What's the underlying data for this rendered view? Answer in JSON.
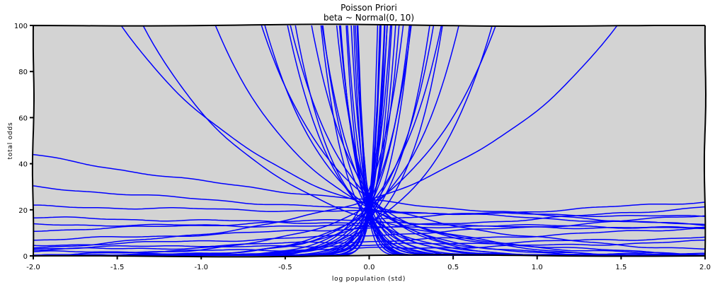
{
  "chart_data": {
    "type": "line",
    "title": "Poisson Priori",
    "subtitle": "beta ~ Normal(0, 10)",
    "xlabel": "log population (std)",
    "ylabel": "total odds",
    "xlim": [
      -2.0,
      2.0
    ],
    "ylim": [
      0,
      100
    ],
    "x_ticks": [
      "-2.0",
      "-1.5",
      "-1.0",
      "-0.5",
      "0.0",
      "0.5",
      "1.0",
      "1.5",
      "2.0"
    ],
    "y_ticks": [
      "0",
      "20",
      "40",
      "60",
      "80",
      "100"
    ],
    "grid": false,
    "series_color": "#0000ff",
    "background_color": "#d3d3d3",
    "series": [
      {
        "a": 3.05,
        "b": -1.7
      },
      {
        "a": 2.8,
        "b": -1.34
      },
      {
        "a": 3.1,
        "b": -1.02
      },
      {
        "a": 3.18,
        "b": -0.3
      },
      {
        "a": 3.0,
        "b": -0.2
      },
      {
        "a": 2.78,
        "b": 0.19
      },
      {
        "a": 2.5,
        "b": 0.28
      },
      {
        "a": 2.65,
        "b": -0.08
      },
      {
        "a": 2.95,
        "b": -0.06
      },
      {
        "a": 2.2,
        "b": 0.34
      },
      {
        "a": 1.85,
        "b": 0.33
      },
      {
        "a": 1.55,
        "b": 0.27
      },
      {
        "a": 1.15,
        "b": 0.35
      },
      {
        "a": 2.55,
        "b": -0.03
      },
      {
        "a": 3.2,
        "b": 0.95
      },
      {
        "a": 3.1,
        "b": 2.0
      },
      {
        "a": 3.05,
        "b": -2.5
      },
      {
        "a": 3.2,
        "b": -3.0
      },
      {
        "a": 3.0,
        "b": 3.0
      },
      {
        "a": 2.9,
        "b": -3.5
      },
      {
        "a": 3.1,
        "b": 3.5
      },
      {
        "a": 2.85,
        "b": -4.0
      },
      {
        "a": 3.0,
        "b": 4.2
      },
      {
        "a": 3.2,
        "b": -5.0
      },
      {
        "a": 2.8,
        "b": 5.0
      },
      {
        "a": 3.15,
        "b": 5.8
      },
      {
        "a": 2.95,
        "b": -6.0
      },
      {
        "a": 3.05,
        "b": 6.5
      },
      {
        "a": 3.25,
        "b": -7.0
      },
      {
        "a": 2.75,
        "b": 7.5
      },
      {
        "a": 3.1,
        "b": -8.5
      },
      {
        "a": 3.0,
        "b": 9.0
      },
      {
        "a": 2.9,
        "b": -10.0
      },
      {
        "a": 3.2,
        "b": 11.0
      },
      {
        "a": 3.05,
        "b": -12.0
      },
      {
        "a": 2.85,
        "b": 13.0
      },
      {
        "a": 3.1,
        "b": -14.0
      },
      {
        "a": 3.0,
        "b": 15.0
      },
      {
        "a": 3.2,
        "b": -17.0
      },
      {
        "a": 2.9,
        "b": 18.0
      },
      {
        "a": 3.15,
        "b": -20.0
      },
      {
        "a": 3.05,
        "b": 22.0
      },
      {
        "a": 3.0,
        "b": 25.0
      },
      {
        "a": 2.8,
        "b": -26.0
      },
      {
        "a": 3.1,
        "b": 30.0
      },
      {
        "a": 3.2,
        "b": -2.2
      },
      {
        "a": 2.7,
        "b": 2.6
      },
      {
        "a": 3.3,
        "b": -3.8
      },
      {
        "a": 2.6,
        "b": 4.6
      },
      {
        "a": 3.35,
        "b": 6.2
      },
      {
        "a": 2.65,
        "b": -6.8
      },
      {
        "a": 3.0,
        "b": -9.3
      },
      {
        "a": 2.95,
        "b": 10.5
      },
      {
        "a": 3.25,
        "b": 12.5
      },
      {
        "a": 2.75,
        "b": -13.5
      },
      {
        "a": 3.1,
        "b": 16.5
      },
      {
        "a": 2.9,
        "b": -18.5
      },
      {
        "a": 3.2,
        "b": 20.5
      },
      {
        "a": 3.05,
        "b": -23.0
      },
      {
        "a": 2.85,
        "b": 27.0
      }
    ]
  }
}
